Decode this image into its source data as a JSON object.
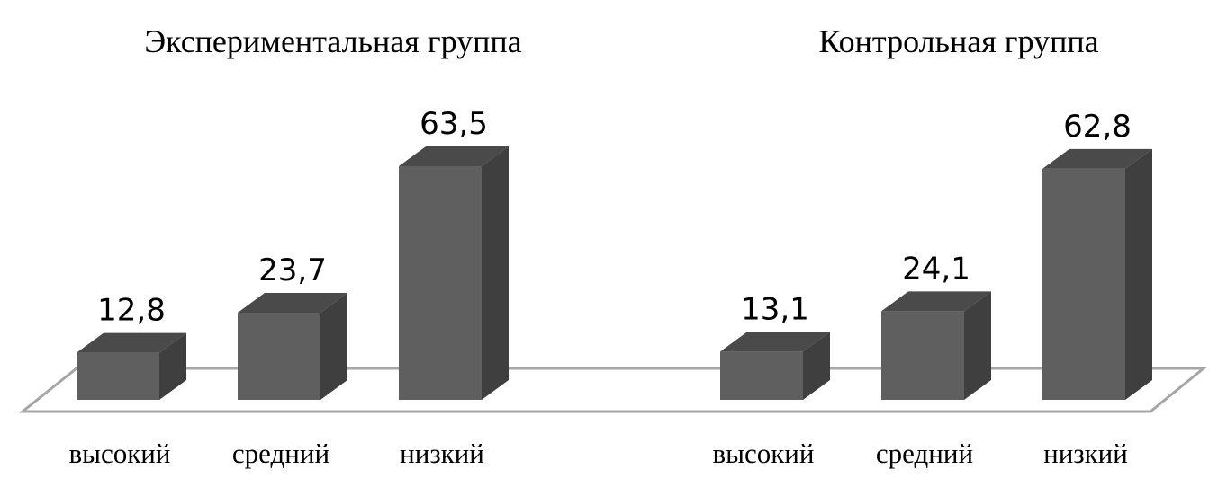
{
  "chart_data": [
    {
      "type": "bar",
      "title": "Экспериментальная группа",
      "categories": [
        "высокий",
        "средний",
        "низкий"
      ],
      "values": [
        12.8,
        23.7,
        63.5
      ],
      "value_labels": [
        "12,8",
        "23,7",
        "63,5"
      ],
      "color": "#5f5f5f"
    },
    {
      "type": "bar",
      "title": "Контрольная группа",
      "categories": [
        "высокий",
        "средний",
        "низкий"
      ],
      "values": [
        13.1,
        24.1,
        62.8
      ],
      "value_labels": [
        "13,1",
        "24,1",
        "62,8"
      ],
      "color": "#5f5f5f"
    }
  ]
}
